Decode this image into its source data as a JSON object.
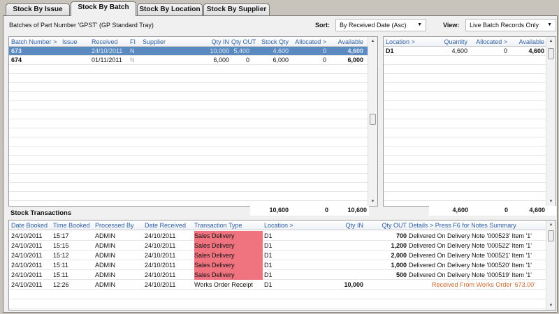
{
  "tabs": [
    {
      "label": "Stock By Issue"
    },
    {
      "label": "Stock By Batch"
    },
    {
      "label": "Stock By Location"
    },
    {
      "label": "Stock By Supplier"
    }
  ],
  "active_tab": 1,
  "subtitle": "Batches of Part Number 'GPST' (GP Standard Tray)",
  "sort": {
    "label": "Sort:",
    "value": "By Received Date (Asc)"
  },
  "view": {
    "label": "View:",
    "value": "Live Batch Records Only"
  },
  "batches": {
    "columns": [
      "Batch Number >",
      "Issue",
      "Received",
      "FI",
      "Supplier",
      "Qty IN",
      "Qty OUT",
      "Stock Qty",
      "Allocated >",
      "Available"
    ],
    "rows": [
      [
        "673",
        "",
        "24/10/2011",
        "N",
        "",
        "10,000",
        "5,400",
        "4,600",
        "0",
        "4,600"
      ],
      [
        "674",
        "",
        "01/11/2011",
        "N",
        "",
        "6,000",
        "0",
        "6,000",
        "0",
        "6,000"
      ]
    ],
    "selected_row": 0,
    "totals": {
      "qty_in": "10,600",
      "allocated": "0",
      "available": "10,600"
    }
  },
  "locations": {
    "columns": [
      "Location >",
      "Quantity",
      "Allocated >",
      "Available"
    ],
    "rows": [
      [
        "D1",
        "4,600",
        "0",
        "4,600"
      ]
    ],
    "totals": {
      "quantity": "4,600",
      "allocated": "0",
      "available": "4,600"
    }
  },
  "transactions": {
    "title": "Stock Transactions",
    "columns": [
      "Date Booked",
      "Time Booked",
      "Processed By",
      "Date Received",
      "Transaction Type",
      "Location >",
      "Qty IN",
      "Qty OUT",
      "Details >  Press F6 for Notes Summary"
    ],
    "rows": [
      [
        "24/10/2011",
        "15:17",
        "ADMIN",
        "24/10/2011",
        "Sales Delivery",
        "D1",
        "",
        "700",
        "Delivered On Delivery Note '000523' Item '1'"
      ],
      [
        "24/10/2011",
        "15:15",
        "ADMIN",
        "24/10/2011",
        "Sales Delivery",
        "D1",
        "",
        "1,200",
        "Delivered On Delivery Note '000522' Item '1'"
      ],
      [
        "24/10/2011",
        "15:12",
        "ADMIN",
        "24/10/2011",
        "Sales Delivery",
        "D1",
        "",
        "2,000",
        "Delivered On Delivery Note '000521' Item '1'"
      ],
      [
        "24/10/2011",
        "15:11",
        "ADMIN",
        "24/10/2011",
        "Sales Delivery",
        "D1",
        "",
        "1,000",
        "Delivered On Delivery Note '000520' Item '1'"
      ],
      [
        "24/10/2011",
        "15:11",
        "ADMIN",
        "24/10/2011",
        "Sales Delivery",
        "D1",
        "",
        "500",
        "Delivered On Delivery Note '000519' Item '1'"
      ],
      [
        "24/10/2011",
        "12:26",
        "ADMIN",
        "24/10/2011",
        "Works Order Receipt",
        "D1",
        "10,000",
        "",
        "Received From Works Order '673.00'"
      ]
    ]
  },
  "colors": {
    "selected_row": "#5a8ac0",
    "sales_delivery_highlight": "#f07480",
    "works_order_note": "#c86a30",
    "header_text": "#3060a0"
  }
}
